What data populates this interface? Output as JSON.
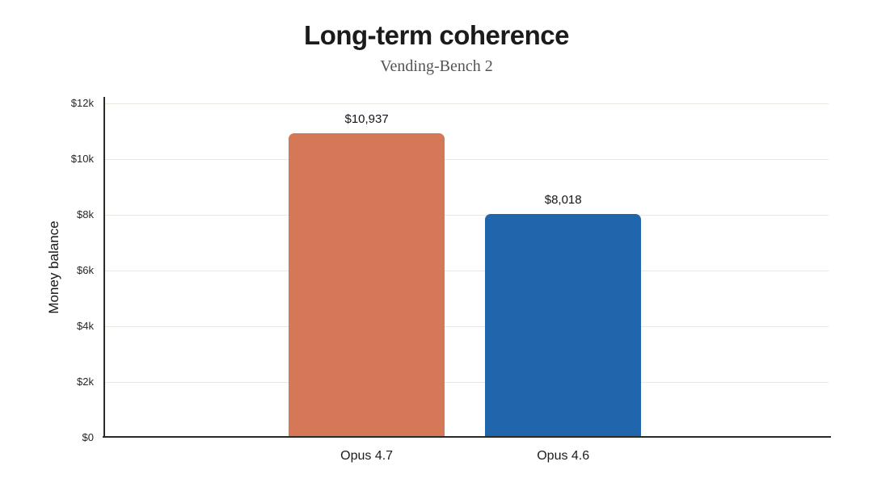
{
  "chart_data": {
    "type": "bar",
    "title": "Long-term coherence",
    "subtitle": "Vending-Bench 2",
    "ylabel": "Money balance",
    "xlabel": "",
    "categories": [
      "Opus 4.7",
      "Opus 4.6"
    ],
    "values": [
      10937,
      8018
    ],
    "value_labels": [
      "$10,937",
      "$8,018"
    ],
    "bar_colors": [
      "#d57858",
      "#2066ac"
    ],
    "ylim": [
      0,
      12000
    ],
    "yticks": {
      "values": [
        0,
        2000,
        4000,
        6000,
        8000,
        10000,
        12000
      ],
      "labels": [
        "$0",
        "$2k",
        "$4k",
        "$6k",
        "$8k",
        "$10k",
        "$12k"
      ]
    },
    "grid": "horizontal-light",
    "legend": "none",
    "background": "#ffffff"
  }
}
